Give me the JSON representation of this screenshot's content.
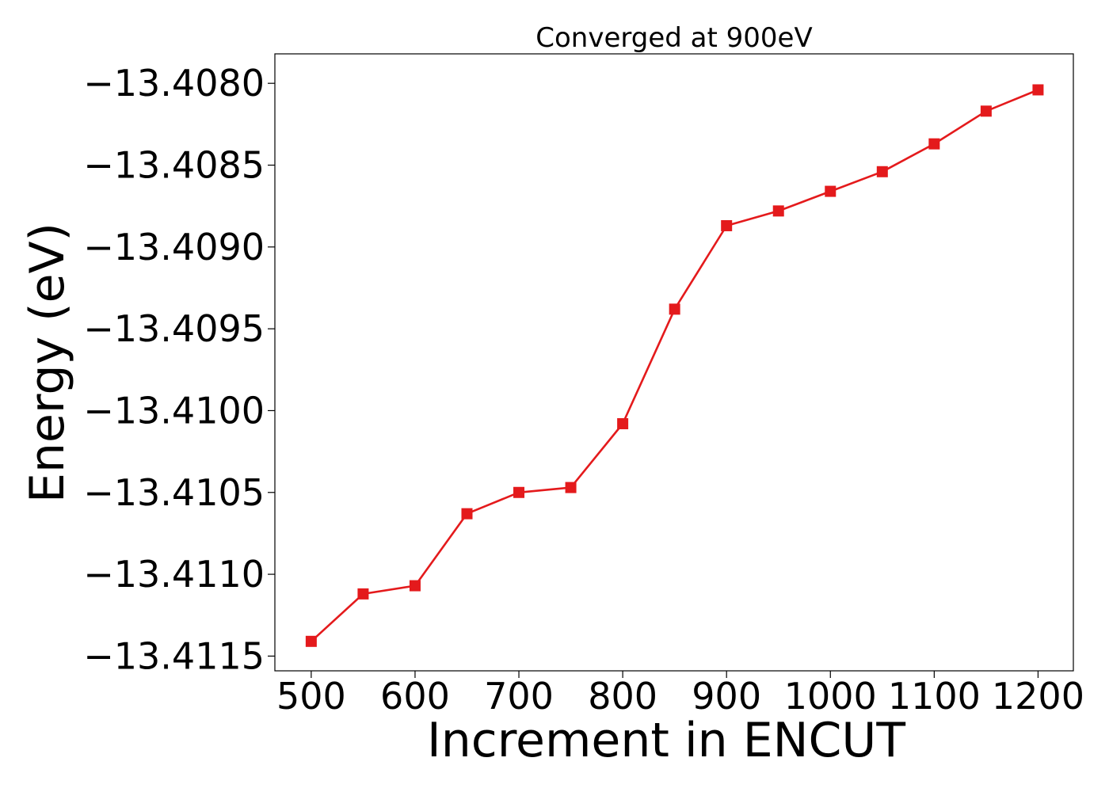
{
  "chart_data": {
    "type": "line",
    "title": "Converged at 900eV",
    "xlabel": "Increment in ENCUT",
    "ylabel": "Energy (eV)",
    "x": [
      500,
      550,
      600,
      650,
      700,
      750,
      800,
      850,
      900,
      950,
      1000,
      1050,
      1100,
      1150,
      1200
    ],
    "series": [
      {
        "values": [
          -13.41141,
          -13.41112,
          -13.41107,
          -13.41063,
          -13.4105,
          -13.41047,
          -13.41008,
          -13.40938,
          -13.40887,
          -13.40878,
          -13.40866,
          -13.40854,
          -13.40837,
          -13.40817,
          -13.40804
        ],
        "color": "#e41a1c",
        "marker": "square"
      }
    ],
    "xlim": [
      465,
      1234
    ],
    "ylim": [
      -13.41159,
      -13.40782
    ],
    "xticks": [
      500,
      600,
      700,
      800,
      900,
      1000,
      1100,
      1200
    ],
    "xtick_labels": [
      "500",
      "600",
      "700",
      "800",
      "900",
      "1000",
      "1100",
      "1200"
    ],
    "yticks": [
      -13.408,
      -13.4085,
      -13.409,
      -13.4095,
      -13.41,
      -13.4105,
      -13.411,
      -13.4115
    ],
    "ytick_labels": [
      "−13.4080",
      "−13.4085",
      "−13.4090",
      "−13.4095",
      "−13.4100",
      "−13.4105",
      "−13.4110",
      "−13.4115"
    ],
    "grid": false,
    "legend": false
  }
}
